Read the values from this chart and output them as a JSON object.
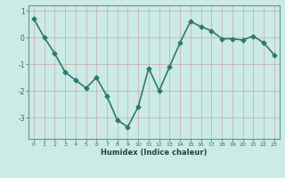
{
  "x": [
    0,
    1,
    2,
    3,
    4,
    5,
    6,
    7,
    8,
    9,
    10,
    11,
    12,
    13,
    14,
    15,
    16,
    17,
    18,
    19,
    20,
    21,
    22,
    23
  ],
  "y": [
    0.7,
    0.0,
    -0.6,
    -1.3,
    -1.6,
    -1.9,
    -1.5,
    -2.2,
    -3.1,
    -3.35,
    -2.6,
    -1.15,
    -2.0,
    -1.1,
    -0.2,
    0.6,
    0.4,
    0.25,
    -0.05,
    -0.05,
    -0.1,
    0.05,
    -0.2,
    -0.65
  ],
  "xlabel": "Humidex (Indice chaleur)",
  "ylabel": "",
  "xlim": [
    -0.5,
    23.5
  ],
  "ylim": [
    -3.8,
    1.2
  ],
  "yticks": [
    1,
    0,
    -1,
    -2,
    -3
  ],
  "xticks": [
    0,
    1,
    2,
    3,
    4,
    5,
    6,
    7,
    8,
    9,
    10,
    11,
    12,
    13,
    14,
    15,
    16,
    17,
    18,
    19,
    20,
    21,
    22,
    23
  ],
  "line_color": "#2d7a6e",
  "marker": "D",
  "markersize": 2.5,
  "bg_color": "#cceae6",
  "grid_color": "#aad4d0",
  "axes_color": "#5a9a90",
  "tick_color": "#2d6e65",
  "xlabel_color": "#1a4a44",
  "linewidth": 1.2
}
